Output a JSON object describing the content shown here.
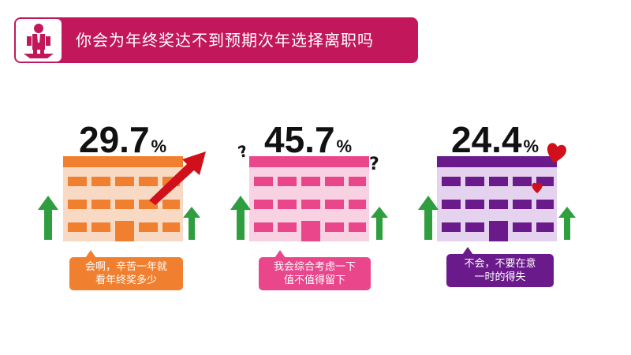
{
  "header": {
    "title": "你会为年终奖达不到预期次年选择离职吗",
    "bg_color": "#c2185b"
  },
  "options": [
    {
      "value": "29.7",
      "unit": "%",
      "line1": "会啊，辛苦一年就",
      "line2": "看年终奖多少",
      "color": "#f08030"
    },
    {
      "value": "45.7",
      "unit": "%",
      "line1": "我会综合考虑一下",
      "line2": "值不值得留下",
      "color": "#e9468c"
    },
    {
      "value": "24.4",
      "unit": "%",
      "line1": "不会，不要在意",
      "line2": "一时的得失",
      "color": "#6a1a8a"
    }
  ],
  "decorations": {
    "question_mark": "?",
    "arrow_color": "#d0101a",
    "growth_arrow_color": "#2e9e3e",
    "heart_color": "#d0101a"
  }
}
